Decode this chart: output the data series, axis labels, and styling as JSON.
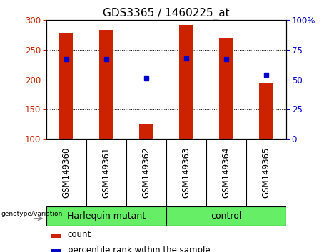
{
  "title": "GDS3365 / 1460225_at",
  "categories": [
    "GSM149360",
    "GSM149361",
    "GSM149362",
    "GSM149363",
    "GSM149364",
    "GSM149365"
  ],
  "bar_values": [
    278,
    283,
    125,
    292,
    270,
    195
  ],
  "percentile_values": [
    67,
    67,
    51,
    68,
    67,
    54
  ],
  "bar_color": "#cc2200",
  "dot_color": "#0000cc",
  "ylim_left": [
    100,
    300
  ],
  "ylim_right": [
    0,
    100
  ],
  "yticks_left": [
    100,
    150,
    200,
    250,
    300
  ],
  "yticks_right": [
    0,
    25,
    50,
    75,
    100
  ],
  "yticklabels_right": [
    "0",
    "25",
    "50",
    "75",
    "100%"
  ],
  "groups": [
    {
      "label": "Harlequin mutant",
      "indices": [
        0,
        1,
        2
      ],
      "color": "#66ee66"
    },
    {
      "label": "control",
      "indices": [
        3,
        4,
        5
      ],
      "color": "#66ee66"
    }
  ],
  "group_label": "genotype/variation",
  "legend_count_label": "count",
  "legend_percentile_label": "percentile rank within the sample",
  "xtick_bg_color": "#c8c8c8",
  "plot_bg_color": "#ffffff",
  "title_fontsize": 11,
  "tick_fontsize": 8.5,
  "label_fontsize": 8.5,
  "group_fontsize": 9
}
